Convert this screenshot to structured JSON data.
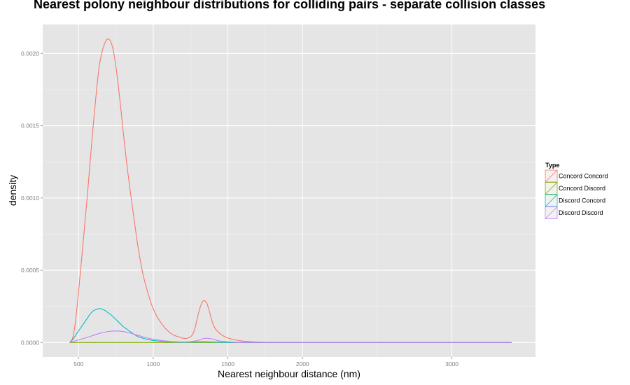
{
  "chart_data": {
    "type": "line",
    "title": "Nearest polony neighbour distributions for colliding pairs - separate collision classes",
    "xlabel": "Nearest neighbour distance (nm)",
    "ylabel": "density",
    "xlim": [
      260,
      3560
    ],
    "ylim": [
      -0.0001,
      0.0022
    ],
    "x_ticks": [
      500,
      1000,
      1500,
      2000,
      3000
    ],
    "x_tick_labels": [
      "500",
      "1000",
      "1500",
      "2000",
      "3000"
    ],
    "y_ticks": [
      0.0,
      0.0005,
      0.001,
      0.0015,
      0.002
    ],
    "y_tick_labels": [
      "0.0000",
      "0.0005",
      "0.0010",
      "0.0015",
      "0.0020"
    ],
    "grid": true,
    "legend": {
      "title": "Type",
      "placement": "right"
    },
    "series": [
      {
        "name": "Concord Concord",
        "color": "#F8766D",
        "x": [
          440,
          460,
          480,
          500,
          520,
          540,
          560,
          580,
          600,
          620,
          640,
          660,
          680,
          700,
          720,
          740,
          760,
          780,
          800,
          825,
          850,
          875,
          900,
          930,
          960,
          990,
          1020,
          1050,
          1080,
          1110,
          1140,
          1170,
          1200,
          1230,
          1260,
          1280,
          1300,
          1320,
          1340,
          1360,
          1380,
          1400,
          1420,
          1450,
          1480,
          1510,
          1550,
          1600,
          1650,
          1700,
          1800,
          1900,
          2000,
          2500,
          3000,
          3400
        ],
        "values": [
          0.0,
          3e-05,
          0.00015,
          0.00035,
          0.00057,
          0.0008,
          0.00103,
          0.00128,
          0.00152,
          0.00174,
          0.00192,
          0.00202,
          0.00208,
          0.0021,
          0.00207,
          0.00198,
          0.00183,
          0.00165,
          0.00145,
          0.00122,
          0.00102,
          0.00083,
          0.00065,
          0.00048,
          0.00036,
          0.00026,
          0.00019,
          0.00014,
          0.0001,
          7e-05,
          5e-05,
          4e-05,
          3e-05,
          3e-05,
          5e-05,
          0.0001,
          0.00019,
          0.00026,
          0.00029,
          0.00027,
          0.0002,
          0.00013,
          9e-05,
          6e-05,
          4e-05,
          2.8e-05,
          1.8e-05,
          1e-05,
          6e-06,
          3e-06,
          1e-06,
          0.0,
          0.0,
          0.0,
          0.0,
          0.0
        ]
      },
      {
        "name": "Concord Discord",
        "color": "#7CAE00",
        "x": [
          440,
          3400
        ],
        "values": [
          0.0,
          0.0
        ]
      },
      {
        "name": "Discord Concord",
        "color": "#00BFC4",
        "x": [
          440,
          460,
          480,
          500,
          520,
          540,
          560,
          580,
          600,
          620,
          640,
          660,
          680,
          700,
          720,
          740,
          760,
          780,
          800,
          820,
          840,
          860,
          880,
          900,
          930,
          960,
          990,
          1020,
          1050,
          1080,
          1110,
          1140,
          1170,
          1200,
          1250,
          1300,
          1330,
          1360,
          1390,
          1420,
          1450,
          1500,
          1550,
          1600,
          2000,
          3000,
          3400
        ],
        "values": [
          0.0,
          2e-05,
          5e-05,
          8e-05,
          0.00011,
          0.00014,
          0.00017,
          0.0002,
          0.00022,
          0.00023,
          0.000235,
          0.00023,
          0.00022,
          0.000205,
          0.00019,
          0.00017,
          0.00015,
          0.00013,
          0.00011,
          9.5e-05,
          8e-05,
          6.5e-05,
          5.2e-05,
          4e-05,
          3e-05,
          2.2e-05,
          1.6e-05,
          1.2e-05,
          9e-06,
          7e-06,
          5e-06,
          4e-06,
          3e-06,
          2e-06,
          3e-06,
          5e-06,
          6e-06,
          5e-06,
          4e-06,
          3e-06,
          2e-06,
          1e-06,
          0.0,
          0.0,
          0.0,
          0.0,
          0.0
        ]
      },
      {
        "name": "Discord Discord",
        "color": "#C77CFF",
        "x": [
          440,
          480,
          520,
          560,
          600,
          640,
          680,
          720,
          760,
          800,
          840,
          880,
          920,
          960,
          1000,
          1040,
          1080,
          1120,
          1160,
          1200,
          1250,
          1300,
          1330,
          1360,
          1390,
          1420,
          1450,
          1500,
          1550,
          1600,
          2000,
          3000,
          3400
        ],
        "values": [
          0.0,
          1.2e-05,
          2.4e-05,
          3.6e-05,
          5e-05,
          6.3e-05,
          7.3e-05,
          7.9e-05,
          8e-05,
          7.6e-05,
          6.7e-05,
          5.5e-05,
          4.3e-05,
          3.2e-05,
          2.3e-05,
          1.6e-05,
          1.1e-05,
          7e-06,
          5e-06,
          4e-06,
          6e-06,
          1.5e-05,
          2.6e-05,
          3e-05,
          2.6e-05,
          1.7e-05,
          1e-05,
          5e-06,
          2e-06,
          1e-06,
          0.0,
          0.0,
          0.0
        ]
      }
    ]
  }
}
